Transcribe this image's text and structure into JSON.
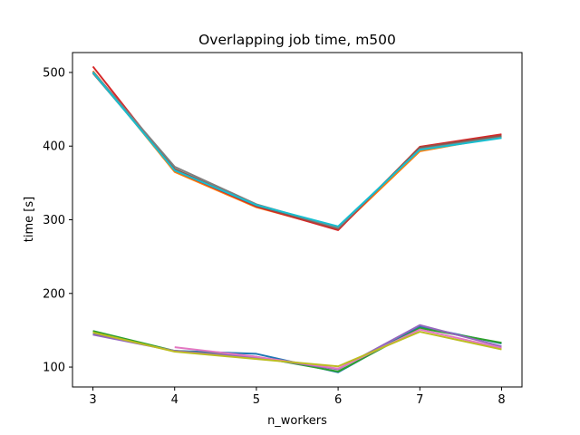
{
  "chart_data": {
    "type": "line",
    "title": "Overlapping job time, m500",
    "xlabel": "n_workers",
    "ylabel": "time [s]",
    "xlim": [
      2.75,
      8.25
    ],
    "ylim": [
      73,
      527
    ],
    "xticks": [
      3,
      4,
      5,
      6,
      7,
      8
    ],
    "yticks": [
      100,
      200,
      300,
      400,
      500
    ],
    "grid": false,
    "legend": "none",
    "series": [
      {
        "color": "#1f77b4",
        "x": [
          3,
          4,
          5,
          6,
          7,
          8
        ],
        "y": [
          145,
          122,
          118,
          93,
          155,
          132
        ]
      },
      {
        "color": "#ff7f0e",
        "x": [
          3,
          4,
          5,
          6,
          7,
          8
        ],
        "y": [
          502,
          365,
          317,
          287,
          393,
          413
        ]
      },
      {
        "color": "#2ca02c",
        "x": [
          3,
          4,
          5,
          6,
          7,
          8
        ],
        "y": [
          149,
          122,
          114,
          94,
          153,
          133
        ]
      },
      {
        "color": "#d62728",
        "x": [
          3,
          4,
          5,
          6,
          7,
          8
        ],
        "y": [
          508,
          367,
          318,
          286,
          399,
          416
        ]
      },
      {
        "color": "#9467bd",
        "x": [
          3,
          4,
          5,
          6,
          7,
          8
        ],
        "y": [
          144,
          122,
          113,
          97,
          157,
          128
        ]
      },
      {
        "color": "#8c564b",
        "x": [
          3,
          4,
          5,
          6,
          7,
          8
        ],
        "y": [
          499,
          369,
          319,
          288,
          398,
          414
        ]
      },
      {
        "color": "#e377c2",
        "x": [
          4,
          5,
          6,
          7,
          8
        ],
        "y": [
          127,
          114,
          98,
          151,
          126
        ]
      },
      {
        "color": "#7f7f7f",
        "x": [
          3,
          4,
          5,
          6,
          7,
          8
        ],
        "y": [
          501,
          372,
          321,
          289,
          396,
          412
        ]
      },
      {
        "color": "#bcbd22",
        "x": [
          3,
          4,
          5,
          6,
          7,
          8
        ],
        "y": [
          147,
          121,
          111,
          101,
          148,
          124
        ]
      },
      {
        "color": "#17becf",
        "x": [
          3,
          4,
          5,
          6,
          7,
          8
        ],
        "y": [
          500,
          367,
          320,
          291,
          395,
          411
        ]
      }
    ]
  }
}
